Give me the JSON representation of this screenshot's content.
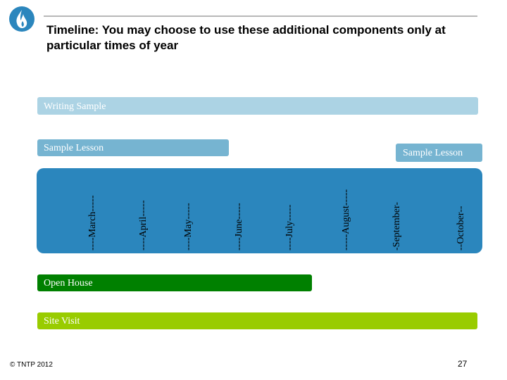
{
  "title": "Timeline: You may choose to use these additional components only at particular times of year",
  "bars": {
    "writing_sample": "Writing Sample",
    "sample_lesson_left": "Sample Lesson",
    "sample_lesson_right": "Sample Lesson",
    "open_house": "Open House",
    "site_visit": "Site Visit"
  },
  "months": [
    "----March-----",
    "----April-----",
    "----May-----",
    "----June-----",
    "----July-----",
    "-----August-----",
    "-September-",
    "--October--"
  ],
  "footer": {
    "copyright": "© TNTP 2012",
    "page_number": "27"
  },
  "colors": {
    "writing_sample": "#acd3e4",
    "sample_lesson": "#76b4d1",
    "months_band": "#2b86bd",
    "open_house": "#008000",
    "site_visit": "#99cc00"
  },
  "icons": {
    "logo": "flame-logo-icon"
  }
}
